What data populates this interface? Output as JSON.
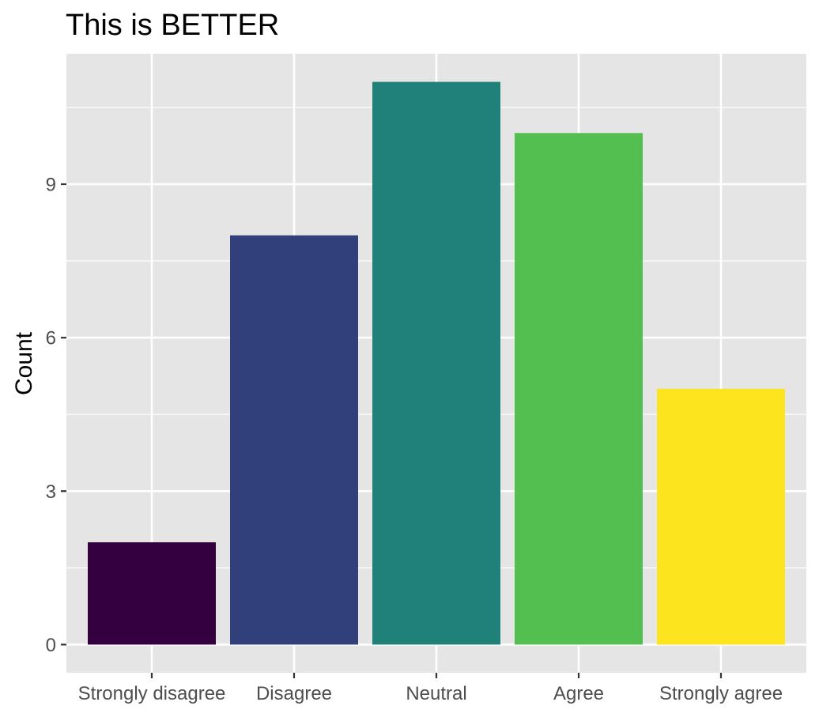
{
  "chart_data": {
    "type": "bar",
    "title": "This is BETTER",
    "xlabel": "",
    "ylabel": "Count",
    "categories": [
      "Strongly disagree",
      "Disagree",
      "Neutral",
      "Agree",
      "Strongly agree"
    ],
    "values": [
      2,
      8,
      11,
      10,
      5
    ],
    "colors": [
      "#350040",
      "#31407A",
      "#20807A",
      "#52BF50",
      "#FCE41F"
    ],
    "yticks": [
      0,
      3,
      6,
      9
    ],
    "ylim": [
      -0.55,
      11.55
    ],
    "grid": true,
    "legend": "none",
    "panel_background": "#E5E5E5",
    "grid_color": "#FFFFFF"
  }
}
